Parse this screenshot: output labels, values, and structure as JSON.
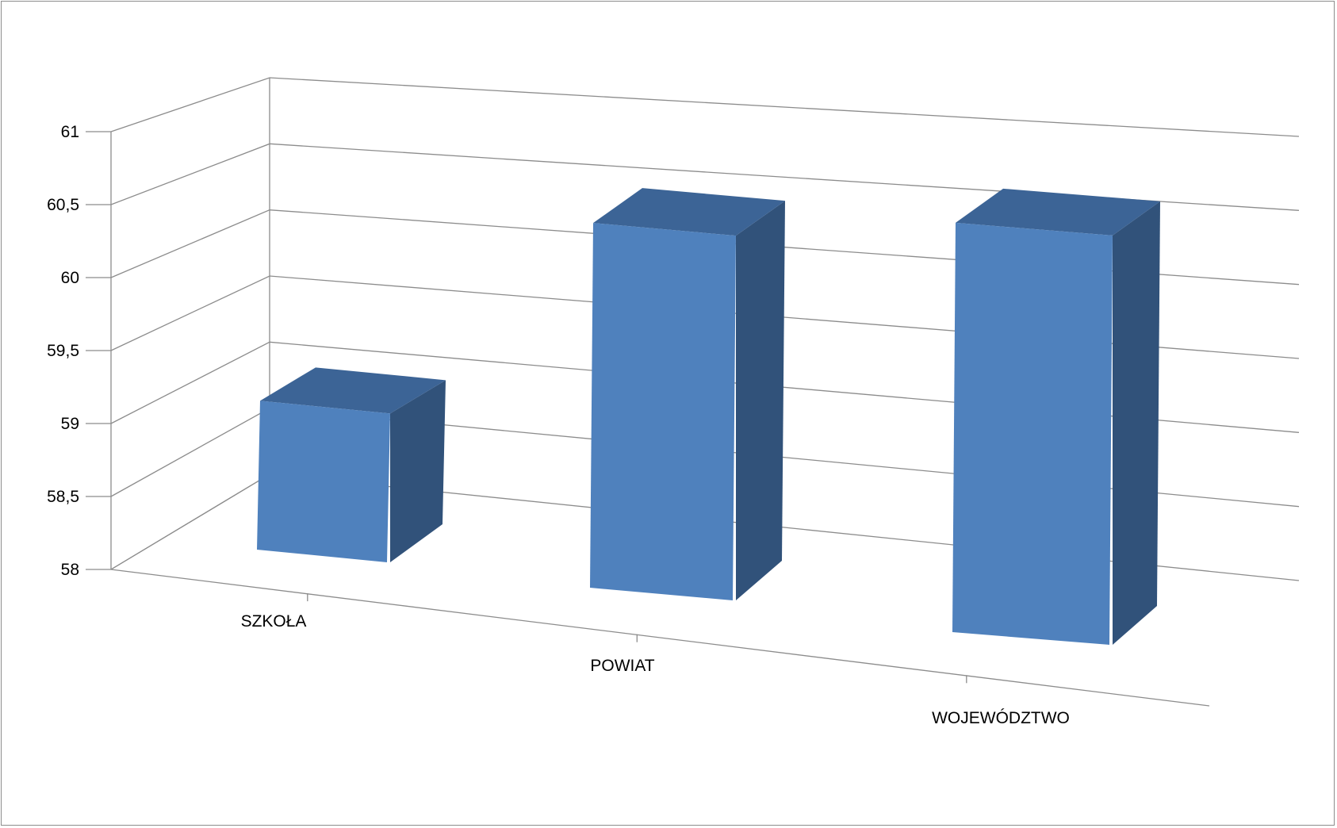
{
  "chart_data": {
    "type": "bar",
    "style": "3d-column",
    "categories": [
      "SZKOŁA",
      "POWIAT",
      "WOJEWÓDZTWO"
    ],
    "series": [
      {
        "values": [
          59.0,
          60.45,
          60.75
        ]
      }
    ],
    "ylim": [
      58,
      61
    ],
    "yticks": [
      "58",
      "58,5",
      "59",
      "59,5",
      "60",
      "60,5",
      "61"
    ],
    "title": "",
    "xlabel": "",
    "ylabel": "",
    "grid": true,
    "legend": "none",
    "colors": {
      "bar_front": "#4f81bd",
      "bar_side": "#31527a",
      "bar_top": "#3c6496",
      "grid": "#8c8c8c",
      "border": "#8c8c8c"
    }
  }
}
